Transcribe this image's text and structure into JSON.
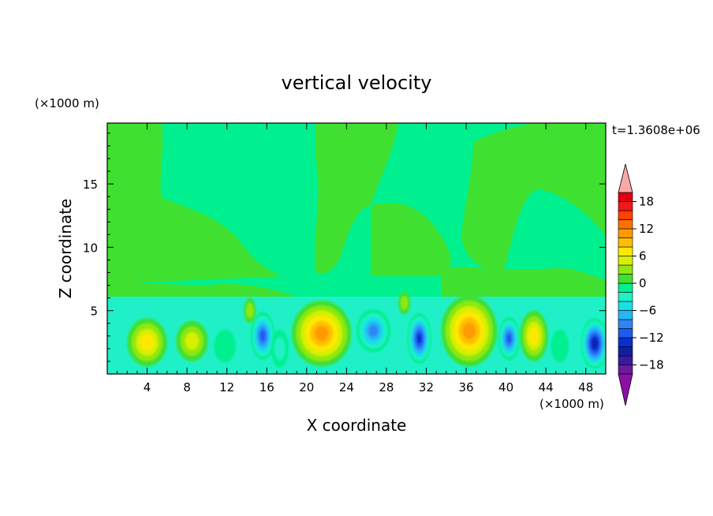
{
  "chart_data": {
    "type": "heatmap",
    "title": "vertical velocity",
    "xlabel": "X coordinate",
    "ylabel": "Z coordinate",
    "x_unit": "(×1000 m)",
    "y_unit": "(×1000 m)",
    "time_label": "t=1.3608e+06",
    "xlim": [
      0,
      50
    ],
    "ylim": [
      0,
      19.8
    ],
    "xticks": [
      4,
      8,
      12,
      16,
      20,
      24,
      28,
      32,
      36,
      40,
      44,
      48
    ],
    "yticks": [
      5,
      10,
      15
    ],
    "colorbar": {
      "range": [
        -20,
        20
      ],
      "step": 2,
      "tick_values": [
        18,
        12,
        6,
        0,
        -6,
        -12,
        -18
      ],
      "tick_labels": [
        "18",
        "12",
        "6",
        "0",
        "−6",
        "−12",
        "−18"
      ],
      "over_color": "#f7a8a8",
      "under_color": "#8c0fa8",
      "colors": [
        "#6a1b9a",
        "#3a1aa0",
        "#1020a0",
        "#0a2fd0",
        "#1d5cf0",
        "#2e86f5",
        "#25b6f5",
        "#17e0e8",
        "#20f0c8",
        "#00f090",
        "#40e030",
        "#90e810",
        "#d8f000",
        "#ffe800",
        "#ffc000",
        "#ff9a00",
        "#ff7000",
        "#ff4000",
        "#f01818",
        "#e00010"
      ]
    },
    "regime": {
      "upper_background": "#00f090",
      "upper_patch_color": "#40e030",
      "lower_background": "#20f0c8"
    },
    "cells": [
      {
        "x": 4.0,
        "z": 2.5,
        "w": 4.0,
        "h": 3.8,
        "peak": 7
      },
      {
        "x": 8.5,
        "z": 2.6,
        "w": 3.2,
        "h": 3.2,
        "peak": 6
      },
      {
        "x": 11.8,
        "z": 2.2,
        "w": 2.2,
        "h": 2.6,
        "peak": -2
      },
      {
        "x": 14.3,
        "z": 5.0,
        "w": 1.2,
        "h": 2.0,
        "peak": 4
      },
      {
        "x": 15.6,
        "z": 3.0,
        "w": 2.4,
        "h": 3.8,
        "peak": -12
      },
      {
        "x": 17.3,
        "z": 2.0,
        "w": 1.8,
        "h": 3.0,
        "peak": -4
      },
      {
        "x": 21.5,
        "z": 3.2,
        "w": 6.0,
        "h": 5.2,
        "peak": 12
      },
      {
        "x": 26.7,
        "z": 3.4,
        "w": 3.4,
        "h": 3.4,
        "peak": -10
      },
      {
        "x": 29.8,
        "z": 5.6,
        "w": 1.2,
        "h": 1.8,
        "peak": 4
      },
      {
        "x": 31.3,
        "z": 2.8,
        "w": 2.4,
        "h": 4.0,
        "peak": -14
      },
      {
        "x": 36.3,
        "z": 3.4,
        "w": 5.6,
        "h": 5.6,
        "peak": 12
      },
      {
        "x": 40.3,
        "z": 2.8,
        "w": 2.2,
        "h": 3.4,
        "peak": -12
      },
      {
        "x": 42.8,
        "z": 3.0,
        "w": 2.8,
        "h": 4.0,
        "peak": 8
      },
      {
        "x": 45.4,
        "z": 2.2,
        "w": 1.8,
        "h": 2.6,
        "peak": -2
      },
      {
        "x": 48.9,
        "z": 2.4,
        "w": 2.8,
        "h": 4.0,
        "peak": -16
      }
    ]
  }
}
